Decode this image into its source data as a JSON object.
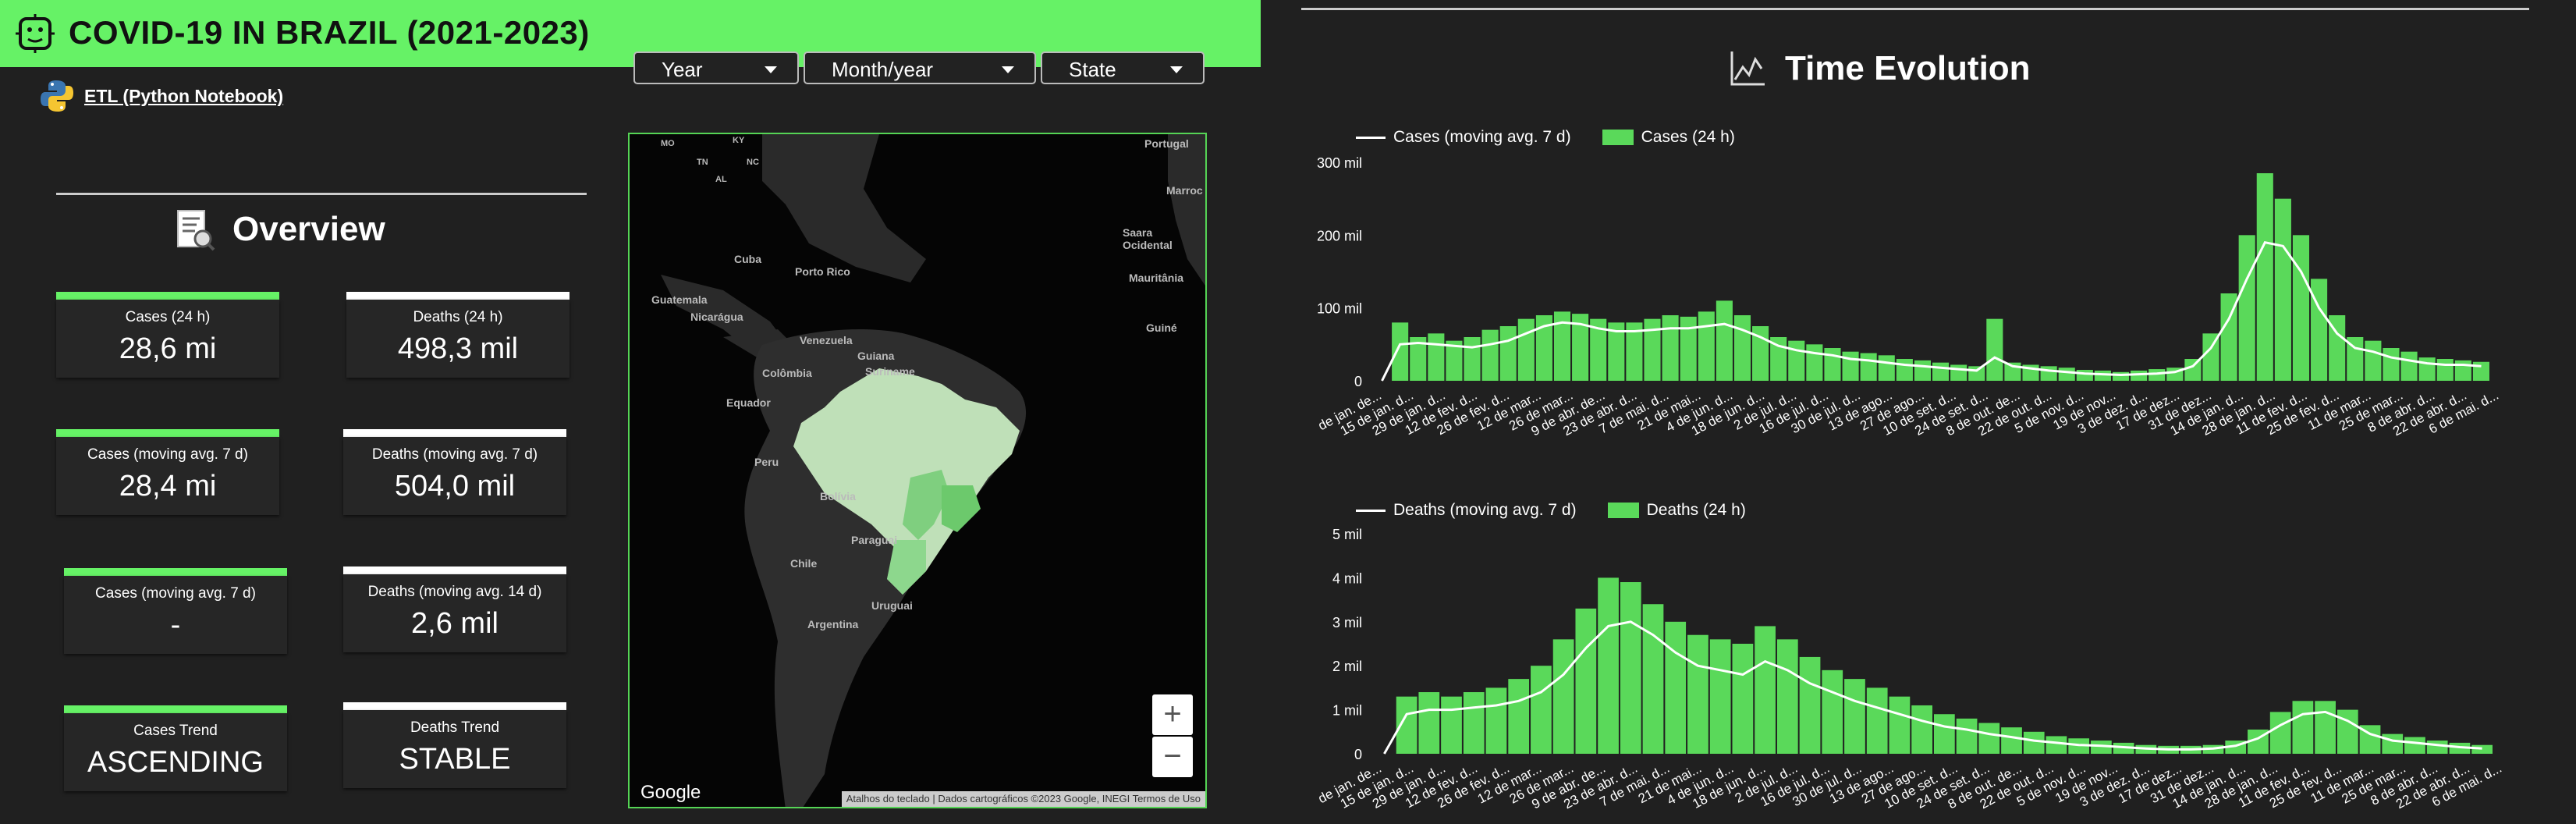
{
  "header": {
    "title": "COVID-19 IN BRAZIL (2021-2023)",
    "brand_color": "#66f266"
  },
  "filters": [
    {
      "label": "Year"
    },
    {
      "label": "Month/year"
    },
    {
      "label": "State"
    }
  ],
  "etl_link": "ETL (Python Notebook)",
  "overview": {
    "title": "Overview",
    "kpis": [
      {
        "label": "Cases (24 h)",
        "value": "28,6 mi",
        "bar_color": "#66f266"
      },
      {
        "label": "Deaths (24 h)",
        "value": "498,3 mil",
        "bar_color": "#ffffff"
      },
      {
        "label": "Cases (moving avg. 7 d)",
        "value": "28,4 mi",
        "bar_color": "#66f266"
      },
      {
        "label": "Deaths (moving avg. 7 d)",
        "value": "504,0 mil",
        "bar_color": "#ffffff"
      },
      {
        "label": "Cases (moving avg. 7 d)",
        "value": "-",
        "bar_color": "#66f266"
      },
      {
        "label": "Deaths (moving avg. 14 d)",
        "value": "2,6 mil",
        "bar_color": "#ffffff"
      },
      {
        "label": "Cases Trend",
        "value": "ASCENDING",
        "bar_color": "#66f266"
      },
      {
        "label": "Deaths Trend",
        "value": "STABLE",
        "bar_color": "#ffffff"
      }
    ]
  },
  "map": {
    "labels": [
      "Portugal",
      "Marroc",
      "Saara Ocidental",
      "Mauritânia",
      "Guiné",
      "Cuba",
      "Porto Rico",
      "Guatemala",
      "Nicarágua",
      "Venezuela",
      "Guiana",
      "Suriname",
      "Colômbia",
      "Equador",
      "Peru",
      "Bolívia",
      "Paraguai",
      "Chile",
      "Uruguai",
      "Argentina",
      "MO",
      "TN",
      "NC",
      "KY",
      "AL"
    ],
    "google": "Google",
    "attribution": "Atalhos do teclado | Dados cartográficos ©2023 Google, INEGI   Termos de Uso",
    "zoom_in": "+",
    "zoom_out": "−"
  },
  "time_evolution": {
    "title": "Time Evolution"
  },
  "chart_data": [
    {
      "type": "bar",
      "title": "",
      "series": [
        {
          "name": "Cases (moving avg. 7 d)",
          "kind": "line",
          "values": [
            0,
            50,
            52,
            50,
            48,
            46,
            50,
            55,
            65,
            75,
            80,
            78,
            72,
            68,
            68,
            70,
            72,
            72,
            75,
            78,
            70,
            60,
            48,
            42,
            38,
            35,
            30,
            28,
            25,
            22,
            20,
            18,
            16,
            14,
            32,
            20,
            17,
            14,
            12,
            10,
            9,
            8,
            9,
            10,
            12,
            20,
            45,
            85,
            140,
            190,
            185,
            150,
            100,
            65,
            45,
            40,
            32,
            28,
            24,
            22,
            22,
            20
          ]
        },
        {
          "name": "Cases (24 h)",
          "kind": "bar",
          "values": [
            0,
            80,
            60,
            65,
            55,
            60,
            70,
            75,
            85,
            90,
            95,
            92,
            85,
            80,
            80,
            85,
            90,
            88,
            95,
            110,
            90,
            75,
            60,
            55,
            50,
            45,
            40,
            38,
            35,
            30,
            28,
            25,
            22,
            20,
            85,
            25,
            22,
            20,
            18,
            15,
            14,
            12,
            14,
            16,
            18,
            30,
            65,
            120,
            200,
            285,
            250,
            200,
            140,
            90,
            60,
            55,
            45,
            40,
            32,
            30,
            28,
            26
          ]
        }
      ],
      "ylim": [
        0,
        300
      ],
      "yticks": [
        "0",
        "100 mil",
        "200 mil",
        "300 mil"
      ],
      "tick_values": [
        0,
        100,
        200,
        300
      ],
      "xticks": [
        "de jan. de...",
        "15 de jan. d...",
        "29 de jan. d...",
        "12 de fev. d...",
        "26 de fev. d...",
        "12 de mar...",
        "26 de mar...",
        "9 de abr. de...",
        "23 de abr. d...",
        "7 de mai. d...",
        "21 de mai...",
        "4 de jun. d...",
        "18 de jun. d...",
        "2 de jul. d...",
        "16 de jul. d...",
        "30 de jul. d...",
        "13 de ago...",
        "27 de ago...",
        "10 de set. d...",
        "24 de set. d...",
        "8 de out. de...",
        "22 de out. d...",
        "5 de nov. d...",
        "19 de nov...",
        "3 de dez. d...",
        "17 de dez...",
        "31 de dez...",
        "14 de jan. d...",
        "28 de jan. d...",
        "11 de fev. d...",
        "25 de fev. d...",
        "11 de mar...",
        "25 de mar...",
        "8 de abr. d...",
        "22 de abr. d...",
        "6 de mai. d..."
      ]
    },
    {
      "type": "bar",
      "title": "",
      "series": [
        {
          "name": "Deaths (moving avg. 7 d)",
          "kind": "line",
          "values": [
            0,
            0.9,
            1.0,
            1.0,
            1.05,
            1.1,
            1.2,
            1.4,
            1.8,
            2.4,
            2.9,
            3.0,
            2.7,
            2.3,
            2.0,
            1.9,
            1.8,
            2.1,
            1.9,
            1.6,
            1.4,
            1.2,
            1.05,
            0.9,
            0.75,
            0.62,
            0.55,
            0.45,
            0.38,
            0.3,
            0.25,
            0.2,
            0.18,
            0.15,
            0.12,
            0.1,
            0.1,
            0.12,
            0.18,
            0.35,
            0.65,
            0.9,
            0.95,
            0.75,
            0.45,
            0.3,
            0.25,
            0.2,
            0.15,
            0.12
          ]
        },
        {
          "name": "Deaths (24 h)",
          "kind": "bar",
          "values": [
            0,
            1.3,
            1.4,
            1.3,
            1.4,
            1.5,
            1.7,
            2.0,
            2.6,
            3.3,
            4.0,
            3.9,
            3.4,
            3.0,
            2.7,
            2.6,
            2.5,
            2.9,
            2.6,
            2.2,
            1.9,
            1.7,
            1.5,
            1.3,
            1.1,
            0.9,
            0.8,
            0.7,
            0.6,
            0.5,
            0.4,
            0.35,
            0.3,
            0.25,
            0.2,
            0.18,
            0.18,
            0.2,
            0.3,
            0.55,
            0.95,
            1.2,
            1.2,
            1.0,
            0.65,
            0.45,
            0.38,
            0.3,
            0.25,
            0.2
          ]
        }
      ],
      "ylim": [
        0,
        5
      ],
      "yticks": [
        "0",
        "1 mil",
        "2 mil",
        "3 mil",
        "4 mil",
        "5 mil"
      ],
      "tick_values": [
        0,
        1,
        2,
        3,
        4,
        5
      ],
      "xticks": [
        "de jan. de...",
        "15 de jan. d...",
        "29 de jan. d...",
        "12 de fev. d...",
        "26 de fev. d...",
        "12 de mar...",
        "26 de mar...",
        "9 de abr. de...",
        "23 de abr. d...",
        "7 de mai. d...",
        "21 de mai...",
        "4 de jun. d...",
        "18 de jun. d...",
        "2 de jul. d...",
        "16 de jul. d...",
        "30 de jul. d...",
        "13 de ago...",
        "27 de ago...",
        "10 de set. d...",
        "24 de set. d...",
        "8 de out. de...",
        "22 de out. d...",
        "5 de nov. d...",
        "19 de nov...",
        "3 de dez. d...",
        "17 de dez...",
        "31 de dez...",
        "14 de jan. d...",
        "28 de jan. d...",
        "11 de fev. d...",
        "25 de fev. d...",
        "11 de mar...",
        "25 de mar...",
        "8 de abr. d...",
        "22 de abr. d...",
        "6 de mai. d..."
      ]
    }
  ],
  "colors": {
    "bar": "#5ad95a",
    "line": "#ffffff",
    "background": "#202020"
  }
}
